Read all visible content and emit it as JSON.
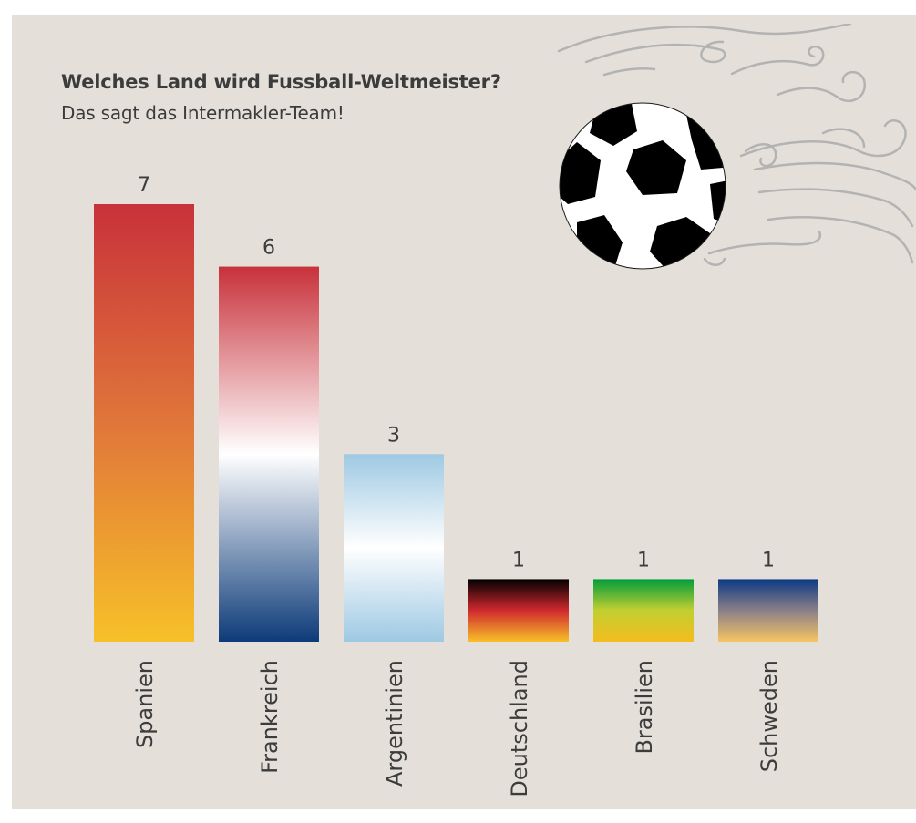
{
  "header": {
    "title": "Welches Land wird Fussball-Weltmeister?",
    "subtitle": "Das sagt das Intermakler-Team!"
  },
  "decoration": {
    "icon": "soccer-ball-icon",
    "swirl_color": "#b3b3b3"
  },
  "colors": {
    "background": "#e4e0d9",
    "text": "#3c3c3c"
  },
  "chart_data": {
    "type": "bar",
    "title": "Welches Land wird Fussball-Weltmeister?",
    "subtitle": "Das sagt das Intermakler-Team!",
    "categories": [
      "Spanien",
      "Frankreich",
      "Argentinien",
      "Deutschland",
      "Brasilien",
      "Schweden"
    ],
    "values": [
      7,
      6,
      3,
      1,
      1,
      1
    ],
    "ylim": [
      0,
      7
    ],
    "grid": false,
    "legend": "none",
    "data_labels": true,
    "bar_gradients": [
      [
        "#c8313a",
        "#e0763a",
        "#f7c028"
      ],
      [
        "#c8313a",
        "#ffffff",
        "#0d3b79"
      ],
      [
        "#9ec9e3",
        "#ffffff",
        "#9ec9e3"
      ],
      [
        "#000000",
        "#d0282e",
        "#f7c028"
      ],
      [
        "#009c3b",
        "#c2cf31",
        "#f4bc1e"
      ],
      [
        "#0b3a84",
        "#8a7f88",
        "#f5c563"
      ]
    ]
  }
}
